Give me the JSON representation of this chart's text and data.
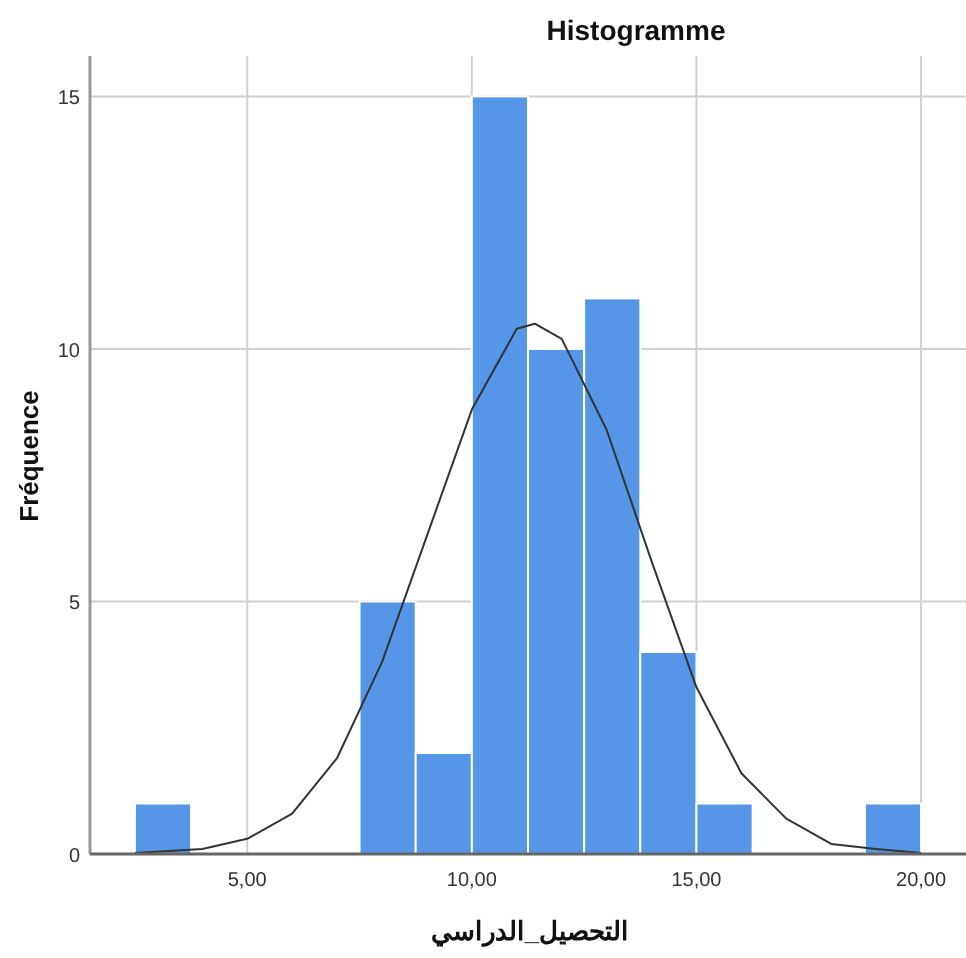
{
  "chart_data": {
    "type": "histogram",
    "title": "Histogramme",
    "xlabel": "التحصيل_الدراسي",
    "ylabel": "Fréquence",
    "bins": [
      2.5,
      3.75,
      5,
      6.25,
      7.5,
      8.75,
      10,
      11.25,
      12.5,
      13.75,
      15,
      16.25,
      17.5,
      18.75,
      20
    ],
    "values": [
      1,
      0,
      0,
      0,
      5,
      2,
      15,
      10,
      11,
      4,
      1,
      0,
      0,
      1
    ],
    "color": "#5596e6",
    "series": [
      {
        "type": "line",
        "color": "#333333",
        "x": [
          2.5,
          4,
          5,
          6,
          7,
          8,
          9,
          10,
          11,
          11.4,
          12,
          13,
          14,
          15,
          16,
          17,
          18,
          19,
          20
        ],
        "values": [
          0.02,
          0.1,
          0.3,
          0.8,
          1.9,
          3.8,
          6.3,
          8.8,
          10.4,
          10.5,
          10.2,
          8.4,
          5.8,
          3.3,
          1.6,
          0.7,
          0.2,
          0.1,
          0.02
        ]
      }
    ],
    "xlim": [
      1.5,
      21
    ],
    "ylim": [
      0,
      15.8
    ],
    "xticks": [
      {
        "value": 5,
        "label": "5,00"
      },
      {
        "value": 10,
        "label": "10,00"
      },
      {
        "value": 15,
        "label": "15,00"
      },
      {
        "value": 20,
        "label": "20,00"
      }
    ],
    "yticks": [
      0,
      5,
      10,
      15
    ],
    "grid": true,
    "marker": "none",
    "line_style": "solid"
  }
}
